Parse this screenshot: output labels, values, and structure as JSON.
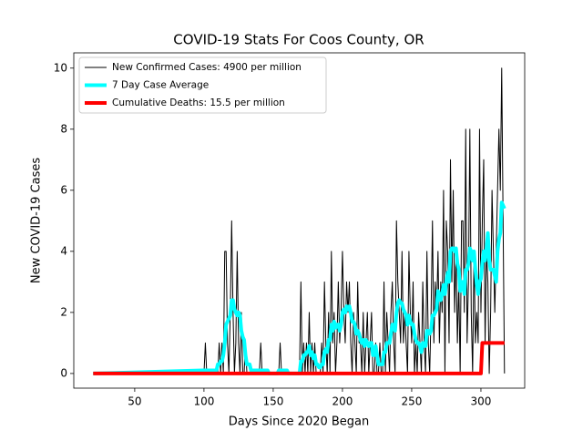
{
  "chart_data": {
    "type": "line",
    "title": "COVID-19 Stats For Coos County, OR",
    "xlabel": "Days Since 2020 Began",
    "ylabel": "New COVID-19 Cases",
    "xlim": [
      6,
      331.6
    ],
    "ylim": [
      -0.48,
      10.5
    ],
    "xticks": [
      50,
      100,
      150,
      200,
      250,
      300
    ],
    "yticks": [
      0,
      2,
      4,
      6,
      8,
      10
    ],
    "legend": "upper left",
    "x": [
      20,
      99,
      100,
      101,
      102,
      103,
      104,
      105,
      106,
      107,
      108,
      109,
      110,
      111,
      112,
      113,
      114,
      115,
      116,
      117,
      118,
      119,
      120,
      121,
      122,
      123,
      124,
      125,
      126,
      127,
      128,
      129,
      130,
      131,
      132,
      133,
      134,
      135,
      136,
      137,
      138,
      139,
      140,
      141,
      142,
      143,
      144,
      145,
      146,
      147,
      148,
      149,
      150,
      151,
      152,
      153,
      154,
      155,
      156,
      157,
      158,
      159,
      160,
      161,
      162,
      163,
      164,
      165,
      166,
      167,
      168,
      169,
      170,
      171,
      172,
      173,
      174,
      175,
      176,
      177,
      178,
      179,
      180,
      181,
      182,
      183,
      184,
      185,
      186,
      187,
      188,
      189,
      190,
      191,
      192,
      193,
      194,
      195,
      196,
      197,
      198,
      199,
      200,
      201,
      202,
      203,
      204,
      205,
      206,
      207,
      208,
      209,
      210,
      211,
      212,
      213,
      214,
      215,
      216,
      217,
      218,
      219,
      220,
      221,
      222,
      223,
      224,
      225,
      226,
      227,
      228,
      229,
      230,
      231,
      232,
      233,
      234,
      235,
      236,
      237,
      238,
      239,
      240,
      241,
      242,
      243,
      244,
      245,
      246,
      247,
      248,
      249,
      250,
      251,
      252,
      253,
      254,
      255,
      256,
      257,
      258,
      259,
      260,
      261,
      262,
      263,
      264,
      265,
      266,
      267,
      268,
      269,
      270,
      271,
      272,
      273,
      274,
      275,
      276,
      277,
      278,
      279,
      280,
      281,
      282,
      283,
      284,
      285,
      286,
      287,
      288,
      289,
      290,
      291,
      292,
      293,
      294,
      295,
      296,
      297,
      298,
      299,
      300,
      301,
      302,
      303,
      304,
      305,
      306,
      307,
      308,
      309,
      310,
      311,
      312,
      313,
      314,
      315,
      316,
      317
    ],
    "series": [
      {
        "name": "New Confirmed Cases: 4900 per million",
        "color": "#000000",
        "width": 1,
        "values": [
          0,
          0,
          0,
          1,
          0,
          0,
          0,
          0,
          0,
          0,
          0,
          0,
          0,
          1,
          0,
          1,
          0,
          4,
          4,
          1,
          0,
          2,
          5,
          2,
          0,
          1,
          4,
          1,
          0,
          2,
          0,
          0,
          1,
          0,
          0,
          0,
          0,
          0,
          0,
          0,
          0,
          0,
          0,
          1,
          0,
          0,
          0,
          0,
          0,
          0,
          0,
          0,
          0,
          0,
          0,
          0,
          0,
          1,
          0,
          0,
          0,
          0,
          0,
          0,
          0,
          0,
          0,
          0,
          0,
          0,
          0,
          0,
          3,
          0,
          1,
          0,
          1,
          0,
          2,
          0,
          1,
          0,
          1,
          0,
          0,
          0,
          0,
          1,
          0,
          3,
          1,
          0,
          2,
          0,
          4,
          1,
          2,
          0,
          1,
          3,
          1,
          2,
          4,
          2,
          1,
          3,
          2,
          3,
          1,
          0,
          2,
          1,
          0,
          3,
          1,
          1,
          0,
          2,
          0,
          1,
          2,
          0,
          1,
          2,
          0,
          0,
          1,
          0,
          0,
          1,
          0,
          0,
          3,
          0,
          2,
          1,
          0,
          2,
          3,
          1,
          0,
          5,
          3,
          2,
          1,
          4,
          1,
          2,
          1,
          0,
          4,
          2,
          1,
          3,
          0,
          1,
          0,
          2,
          1,
          0,
          3,
          1,
          0,
          4,
          1,
          0,
          2,
          5,
          1,
          3,
          2,
          4,
          1,
          3,
          2,
          6,
          0,
          5,
          4,
          1,
          7,
          3,
          6,
          2,
          4,
          1,
          3,
          0,
          5,
          5,
          2,
          8,
          1,
          3,
          8,
          2,
          0,
          4,
          1,
          2,
          1,
          8,
          2,
          5,
          7,
          1,
          4,
          3,
          0,
          2,
          6,
          4,
          2,
          4,
          6,
          8,
          6,
          10,
          5,
          0
        ]
      },
      {
        "name": "7 Day Case Average",
        "color": "#00ffff",
        "width": 4,
        "values": [
          0,
          0.1,
          0.1,
          0.1,
          0.1,
          0.1,
          0.1,
          0.1,
          0.1,
          0.1,
          0.1,
          0.1,
          0.3,
          0.3,
          0.4,
          0.4,
          0.6,
          1.0,
          1.6,
          1.7,
          1.8,
          1.9,
          2.4,
          2.4,
          2.1,
          2.0,
          1.9,
          2.0,
          1.9,
          1.4,
          1.2,
          1.1,
          0.6,
          0.3,
          0.3,
          0.3,
          0.1,
          0.1,
          0.1,
          0.1,
          0.1,
          0.1,
          0.1,
          0.1,
          0.1,
          0.1,
          0.1,
          0.1,
          0.1,
          0,
          0,
          0,
          0,
          0,
          0,
          0,
          0.1,
          0.1,
          0.1,
          0.1,
          0.1,
          0.1,
          0.1,
          0,
          0,
          0,
          0,
          0,
          0,
          0,
          0,
          0,
          0.4,
          0.4,
          0.6,
          0.6,
          0.7,
          0.7,
          0.9,
          0.6,
          0.7,
          0.5,
          0.6,
          0.3,
          0.3,
          0.2,
          0.2,
          0.3,
          0.3,
          0.7,
          0.8,
          0.7,
          1.1,
          1.1,
          1.6,
          1.4,
          1.7,
          1.5,
          1.6,
          1.6,
          1.4,
          1.6,
          2.0,
          2.1,
          2.0,
          2.2,
          2.1,
          2.2,
          2.0,
          1.7,
          1.7,
          1.6,
          1.3,
          1.4,
          1.3,
          1.1,
          1.0,
          1.1,
          0.9,
          1.1,
          1.0,
          0.9,
          1.0,
          1.0,
          0.6,
          0.6,
          0.9,
          0.6,
          0.3,
          0.3,
          0.3,
          0.3,
          0.7,
          0.7,
          1.0,
          1.0,
          1.0,
          1.3,
          1.6,
          1.6,
          1.4,
          2.0,
          2.3,
          2.4,
          2.3,
          2.3,
          2.1,
          2.0,
          1.9,
          1.6,
          1.9,
          1.7,
          1.6,
          1.6,
          1.3,
          1.1,
          1.0,
          1.0,
          0.9,
          0.7,
          1.0,
          0.9,
          0.9,
          1.4,
          1.4,
          1.3,
          1.4,
          1.9,
          1.9,
          2.0,
          2.1,
          2.7,
          2.6,
          2.4,
          2.6,
          2.9,
          2.6,
          3.0,
          3.3,
          3.0,
          4.0,
          4.1,
          4.1,
          4.0,
          4.1,
          3.6,
          3.4,
          2.7,
          3.0,
          3.0,
          2.6,
          3.4,
          3.4,
          3.6,
          4.1,
          4.0,
          3.7,
          4.0,
          3.4,
          2.9,
          2.6,
          3.0,
          3.1,
          3.6,
          4.0,
          3.7,
          4.1,
          4.6,
          3.7,
          3.4,
          3.4,
          3.4,
          3.2,
          3.0,
          4.0,
          4.4,
          4.6,
          5.6,
          5.5,
          5.4
        ]
      },
      {
        "name": "Cumulative Deaths: 15.5 per million",
        "color": "#ff0000",
        "width": 4,
        "values": [
          0,
          0,
          0,
          0,
          0,
          0,
          0,
          0,
          0,
          0,
          0,
          0,
          0,
          0,
          0,
          0,
          0,
          0,
          0,
          0,
          0,
          0,
          0,
          0,
          0,
          0,
          0,
          0,
          0,
          0,
          0,
          0,
          0,
          0,
          0,
          0,
          0,
          0,
          0,
          0,
          0,
          0,
          0,
          0,
          0,
          0,
          0,
          0,
          0,
          0,
          0,
          0,
          0,
          0,
          0,
          0,
          0,
          0,
          0,
          0,
          0,
          0,
          0,
          0,
          0,
          0,
          0,
          0,
          0,
          0,
          0,
          0,
          0,
          0,
          0,
          0,
          0,
          0,
          0,
          0,
          0,
          0,
          0,
          0,
          0,
          0,
          0,
          0,
          0,
          0,
          0,
          0,
          0,
          0,
          0,
          0,
          0,
          0,
          0,
          0,
          0,
          0,
          0,
          0,
          0,
          0,
          0,
          0,
          0,
          0,
          0,
          0,
          0,
          0,
          0,
          0,
          0,
          0,
          0,
          0,
          0,
          0,
          0,
          0,
          0,
          0,
          0,
          0,
          0,
          0,
          0,
          0,
          0,
          0,
          0,
          0,
          0,
          0,
          0,
          0,
          0,
          0,
          0,
          0,
          0,
          0,
          0,
          0,
          0,
          0,
          0,
          0,
          0,
          0,
          0,
          0,
          0,
          0,
          0,
          0,
          0,
          0,
          0,
          0,
          0,
          0,
          0,
          0,
          0,
          0,
          0,
          0,
          0,
          0,
          0,
          0,
          0,
          0,
          0,
          0,
          0,
          0,
          0,
          0,
          0,
          0,
          0,
          0,
          0,
          0,
          0,
          0,
          0,
          0,
          0,
          0,
          0,
          0,
          0,
          0,
          0,
          0,
          0,
          1,
          1,
          1,
          1,
          1,
          1,
          1,
          1,
          1,
          1,
          1,
          1,
          1,
          1,
          1,
          1,
          1
        ]
      }
    ]
  }
}
